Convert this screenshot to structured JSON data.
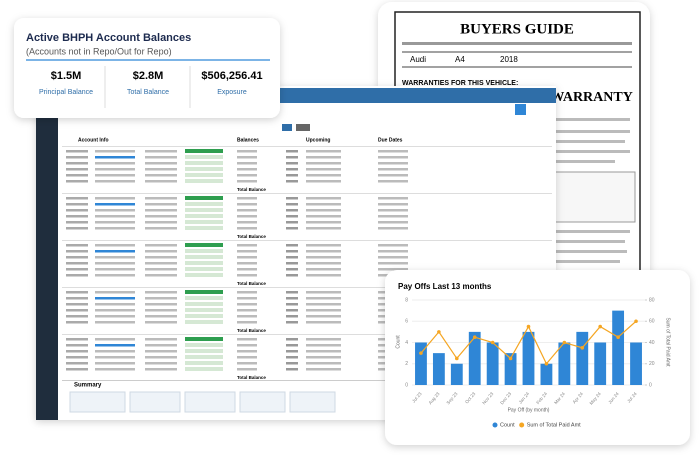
{
  "summary_card": {
    "title": "Active BHPH Account Balances",
    "subtitle": "(Accounts not in Repo/Out for Repo)",
    "stats": [
      {
        "value": "$1.5M",
        "label": "Principal Balance"
      },
      {
        "value": "$2.8M",
        "label": "Total Balance"
      },
      {
        "value": "$506,256.41",
        "label": "Exposure"
      }
    ]
  },
  "buyers_guide": {
    "title": "BUYERS GUIDE",
    "make": "Audi",
    "model": "A4",
    "year": "2018",
    "warranties_heading": "WARRANTIES FOR THIS VEHICLE:",
    "warranty": "AS IS - NO DEALER WARRANTY"
  },
  "app": {
    "columns": [
      "Account Info",
      "Balances",
      "Upcoming",
      "Due Dates"
    ],
    "row_total_label": "Total Balance",
    "summary": "Summary"
  },
  "chart_data": {
    "type": "bar",
    "title": "Pay Offs Last 13 months",
    "x_label": "Pay Off (by month)",
    "y_label": "Count",
    "y2_label": "Sum of Total Paid Amt",
    "categories": [
      "Jul 23",
      "Aug 23",
      "Sep 23",
      "Oct 23",
      "Nov 23",
      "Dec 23",
      "Jan 24",
      "Feb 24",
      "Mar 24",
      "Apr 24",
      "May 24",
      "Jun 24",
      "Jul 24"
    ],
    "series": [
      {
        "name": "Count",
        "color": "#2f86d6",
        "values": [
          4,
          3,
          2,
          5,
          4,
          3,
          5,
          2,
          4,
          5,
          4,
          7,
          4
        ]
      },
      {
        "name": "Sum of Total Paid Amt",
        "color": "#f5a623",
        "axis": "y2",
        "values": [
          30,
          50,
          25,
          45,
          40,
          25,
          55,
          20,
          40,
          35,
          55,
          45,
          60
        ]
      }
    ],
    "ylim": [
      0,
      8
    ],
    "yticks": [
      0,
      2,
      4,
      6,
      8
    ],
    "y2lim": [
      0,
      80
    ],
    "y2ticks": [
      0,
      20,
      40,
      60,
      80
    ]
  }
}
